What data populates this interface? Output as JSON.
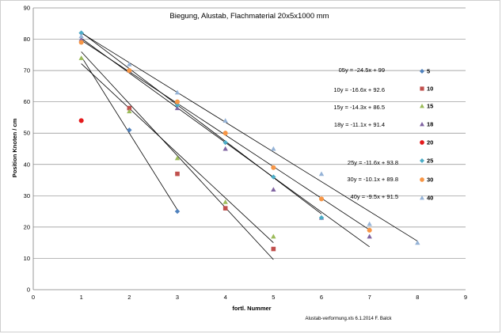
{
  "chart_data": {
    "type": "scatter",
    "title": "Biegung, Alustab, Flachmaterial 20x5x1000 mm",
    "xlabel": "fortl. Nummer",
    "ylabel": "Position Knoten / cm",
    "xlim": [
      0,
      9
    ],
    "ylim": [
      0,
      90
    ],
    "x_ticks": [
      "0",
      "1",
      "2",
      "3",
      "4",
      "5",
      "6",
      "7",
      "8",
      "9"
    ],
    "y_ticks": [
      "0",
      "10",
      "20",
      "30",
      "40",
      "50",
      "60",
      "70",
      "80",
      "90"
    ],
    "grid": "horizontal",
    "legend_position": "right",
    "footnote": "Alustab-verformung.xls  6.1.2014 F. Balck",
    "series": [
      {
        "name": "5",
        "color": "#4f81bd",
        "marker": "diamond",
        "points": [
          [
            1,
            82
          ],
          [
            2,
            51
          ],
          [
            3,
            25
          ]
        ]
      },
      {
        "name": "10",
        "color": "#c0504d",
        "marker": "square",
        "points": [
          [
            2,
            58
          ],
          [
            3,
            37
          ],
          [
            4,
            26
          ],
          [
            5,
            13
          ]
        ]
      },
      {
        "name": "15",
        "color": "#9bbb59",
        "marker": "triangle",
        "points": [
          [
            1,
            74
          ],
          [
            2,
            57
          ],
          [
            3,
            42
          ],
          [
            4,
            28
          ],
          [
            5,
            17
          ]
        ]
      },
      {
        "name": "18",
        "color": "#8064a2",
        "marker": "triangle",
        "points": [
          [
            1,
            80
          ],
          [
            2,
            70
          ],
          [
            3,
            58
          ],
          [
            4,
            45
          ],
          [
            5,
            32
          ],
          [
            6,
            23
          ],
          [
            7,
            17
          ]
        ]
      },
      {
        "name": "20",
        "color": "#e41a1c",
        "marker": "circle",
        "points": [
          [
            1,
            54
          ]
        ]
      },
      {
        "name": "25",
        "color": "#4bacc6",
        "marker": "diamond",
        "points": [
          [
            1,
            82
          ],
          [
            2,
            70
          ],
          [
            3,
            59
          ],
          [
            4,
            47
          ],
          [
            5,
            36
          ],
          [
            6,
            23
          ]
        ]
      },
      {
        "name": "30",
        "color": "#f79646",
        "marker": "circle",
        "points": [
          [
            1,
            79
          ],
          [
            2,
            70
          ],
          [
            3,
            60
          ],
          [
            4,
            50
          ],
          [
            5,
            39
          ],
          [
            6,
            29
          ],
          [
            7,
            19
          ]
        ]
      },
      {
        "name": "40",
        "color": "#95b3d7",
        "marker": "triangle",
        "points": [
          [
            1,
            81
          ],
          [
            2,
            72
          ],
          [
            3,
            63
          ],
          [
            4,
            54
          ],
          [
            5,
            45
          ],
          [
            6,
            37
          ],
          [
            7,
            21
          ],
          [
            8,
            15
          ]
        ]
      }
    ],
    "trendlines": [
      {
        "label": "05",
        "equation": "y = -24.5x + 99",
        "slope": -24.5,
        "intercept": 99,
        "x_range": [
          1,
          3
        ]
      },
      {
        "label": "10",
        "equation": "y = -16.6x + 92.6",
        "slope": -16.6,
        "intercept": 92.6,
        "x_range": [
          1,
          5
        ]
      },
      {
        "label": "15",
        "equation": "y = -14.3x + 86.5",
        "slope": -14.3,
        "intercept": 86.5,
        "x_range": [
          1,
          5
        ]
      },
      {
        "label": "18",
        "equation": "y = -11.1x + 91.4",
        "slope": -11.1,
        "intercept": 91.4,
        "x_range": [
          1,
          7
        ]
      },
      {
        "label": "25",
        "equation": "y = -11.6x + 93.8",
        "slope": -11.6,
        "intercept": 93.8,
        "x_range": [
          1,
          6
        ]
      },
      {
        "label": "30",
        "equation": "y = -10.1x + 89.8",
        "slope": -10.1,
        "intercept": 89.8,
        "x_range": [
          1,
          7
        ]
      },
      {
        "label": "40",
        "equation": "y = -9.5x + 91.5",
        "slope": -9.5,
        "intercept": 91.5,
        "x_range": [
          1,
          8
        ]
      }
    ]
  }
}
